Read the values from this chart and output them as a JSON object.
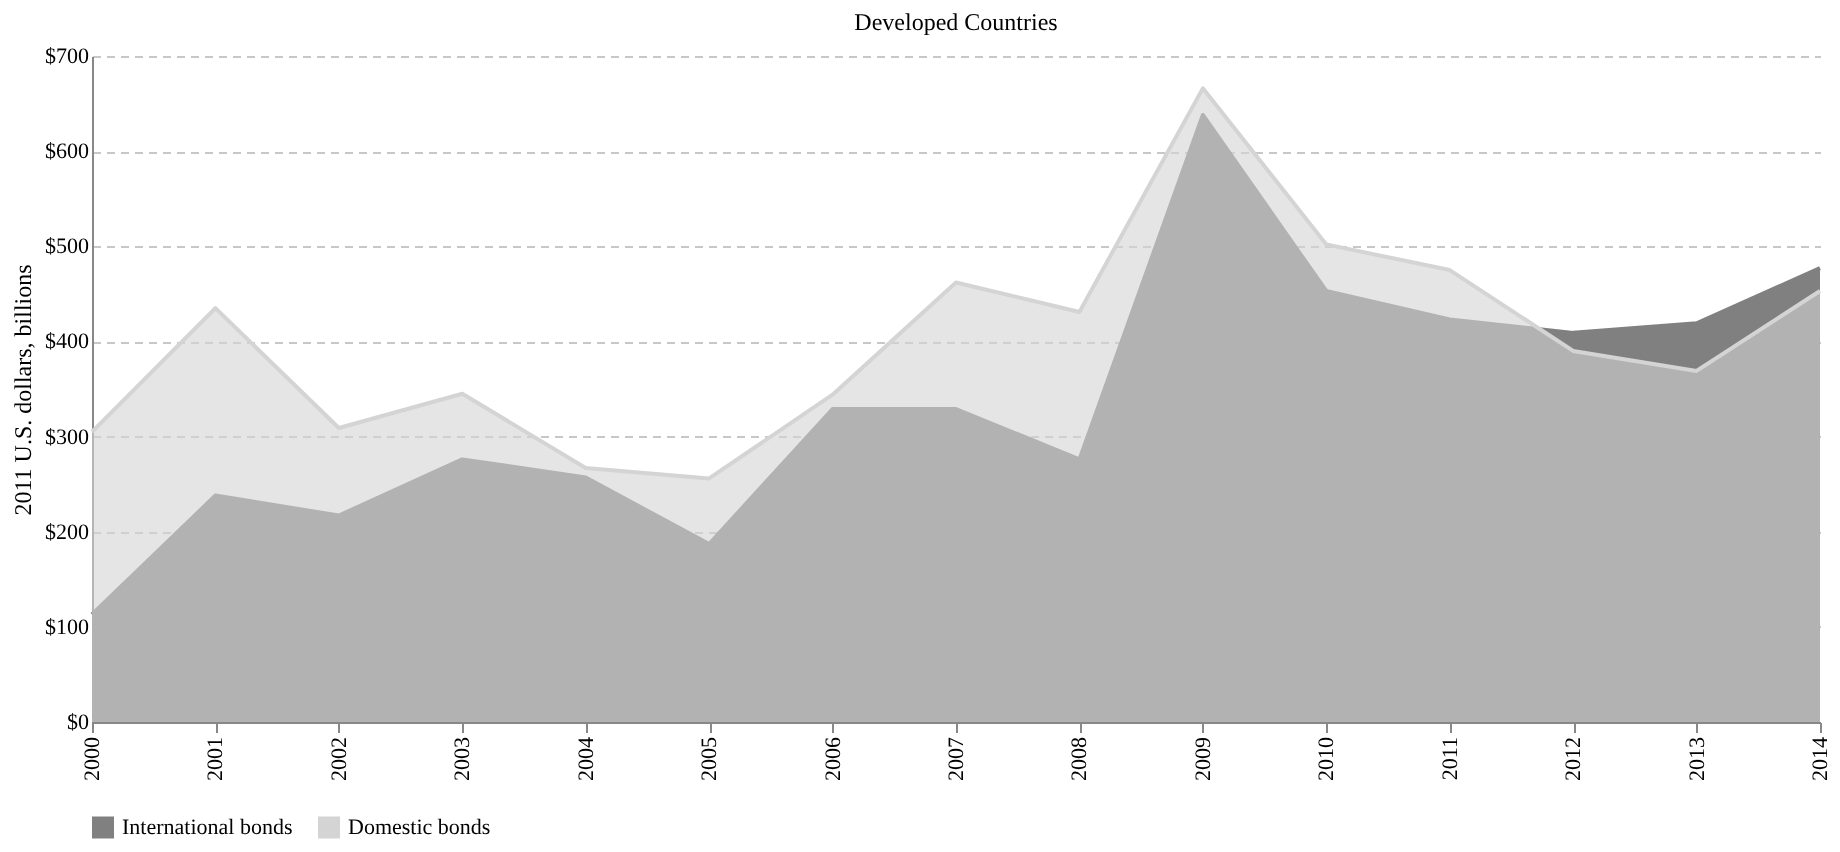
{
  "chart_data": {
    "type": "area",
    "title": "Developed Countries",
    "ylabel": "2011 U.S. dollars, billions",
    "categories": [
      "2000",
      "2001",
      "2002",
      "2003",
      "2004",
      "2005",
      "2006",
      "2007",
      "2008",
      "2009",
      "2010",
      "2011",
      "2012",
      "2013",
      "2014"
    ],
    "series": [
      {
        "name": "International bonds",
        "color": "#808080",
        "values": [
          113,
          238,
          217,
          276,
          257,
          187,
          329,
          329,
          276,
          638,
          453,
          423,
          409,
          419,
          477
        ]
      },
      {
        "name": "Domestic bonds",
        "color": "#d4d4d4",
        "values": [
          305,
          435,
          309,
          345,
          267,
          256,
          344,
          462,
          431,
          666,
          502,
          475,
          390,
          369,
          453
        ]
      }
    ],
    "ylim": [
      0,
      700
    ],
    "yticks": [
      {
        "value": 0,
        "label": "$0"
      },
      {
        "value": 100,
        "label": "$100"
      },
      {
        "value": 200,
        "label": "$200"
      },
      {
        "value": 300,
        "label": "$300"
      },
      {
        "value": 400,
        "label": "$400"
      },
      {
        "value": 500,
        "label": "$500"
      },
      {
        "value": 600,
        "label": "$600"
      },
      {
        "value": 700,
        "label": "$700"
      }
    ],
    "grid": "y",
    "legend": "bottom"
  }
}
